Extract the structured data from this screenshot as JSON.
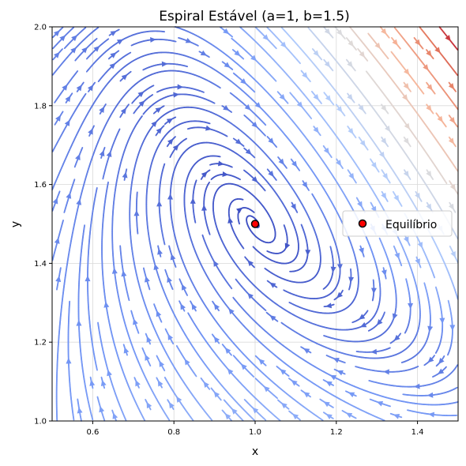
{
  "chart_data": {
    "type": "streamplot",
    "title": "Espiral Estável (a=1, b=1.5)",
    "xlabel": "x",
    "ylabel": "y",
    "xlim": [
      0.5,
      1.5
    ],
    "ylim": [
      1.0,
      2.0
    ],
    "xticks": [
      "0.6",
      "0.8",
      "1.0",
      "1.2",
      "1.4"
    ],
    "yticks": [
      "1.0",
      "1.2",
      "1.4",
      "1.6",
      "1.8",
      "2.0"
    ],
    "grid": true,
    "colormap": "coolwarm",
    "colormap_stops": [
      "#3b4cc0",
      "#7396f5",
      "#b0cbfc",
      "#dddcdc",
      "#f6b69b",
      "#e47a60",
      "#b40426"
    ],
    "series": [
      {
        "name": "Equilíbrio",
        "type": "point",
        "x": [
          1.0
        ],
        "y": [
          1.5
        ],
        "color": "#ff0000",
        "edgecolor": "#000000"
      }
    ],
    "legend_position": "center-right"
  }
}
